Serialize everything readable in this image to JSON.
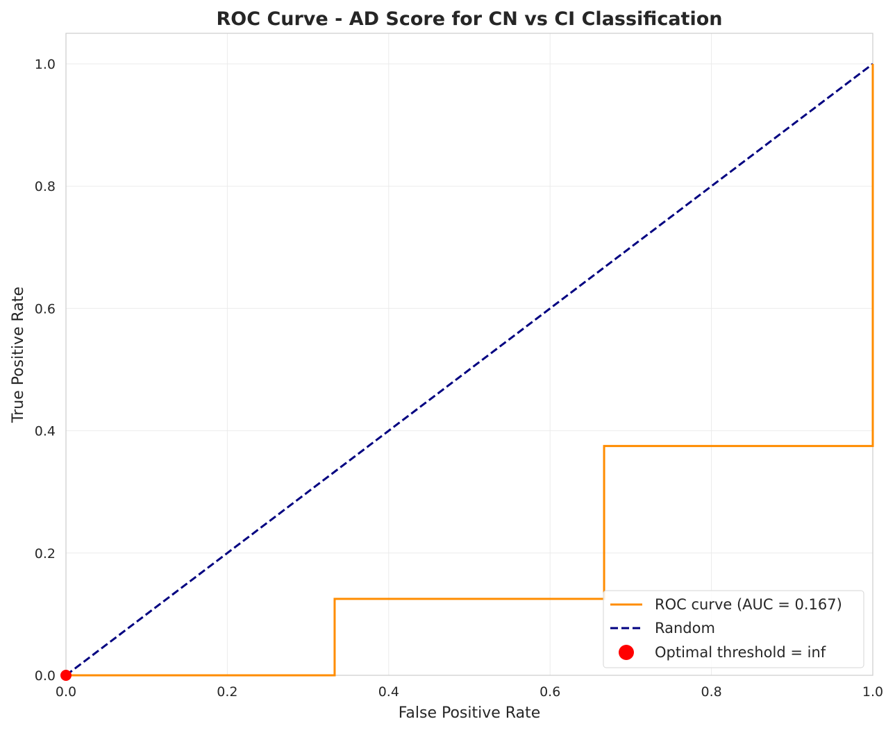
{
  "chart_data": {
    "type": "line",
    "title": "ROC Curve - AD Score for CN vs CI Classification",
    "xlabel": "False Positive Rate",
    "ylabel": "True Positive Rate",
    "xlim": [
      0.0,
      1.0
    ],
    "ylim": [
      0.0,
      1.05
    ],
    "xticks": [
      0.0,
      0.2,
      0.4,
      0.6,
      0.8,
      1.0
    ],
    "yticks": [
      0.0,
      0.2,
      0.4,
      0.6,
      0.8,
      1.0
    ],
    "xtick_labels": [
      "0.0",
      "0.2",
      "0.4",
      "0.6",
      "0.8",
      "1.0"
    ],
    "ytick_labels": [
      "0.0",
      "0.2",
      "0.4",
      "0.6",
      "0.8",
      "1.0"
    ],
    "grid": true,
    "legend_position": "bottom-right",
    "series": [
      {
        "name": "ROC curve (AUC = 0.167)",
        "style": "solid",
        "color": "#ff8c00",
        "x": [
          0.0,
          0.0,
          0.333,
          0.333,
          0.667,
          0.667,
          1.0,
          1.0
        ],
        "y": [
          0.0,
          0.0,
          0.0,
          0.125,
          0.125,
          0.375,
          0.375,
          1.0
        ]
      },
      {
        "name": "Random",
        "style": "dashed",
        "color": "#000080",
        "x": [
          0.0,
          1.0
        ],
        "y": [
          0.0,
          1.0
        ]
      }
    ],
    "markers": [
      {
        "name": "Optimal threshold = inf",
        "color": "#ff0000",
        "x": 0.0,
        "y": 0.0
      }
    ]
  }
}
